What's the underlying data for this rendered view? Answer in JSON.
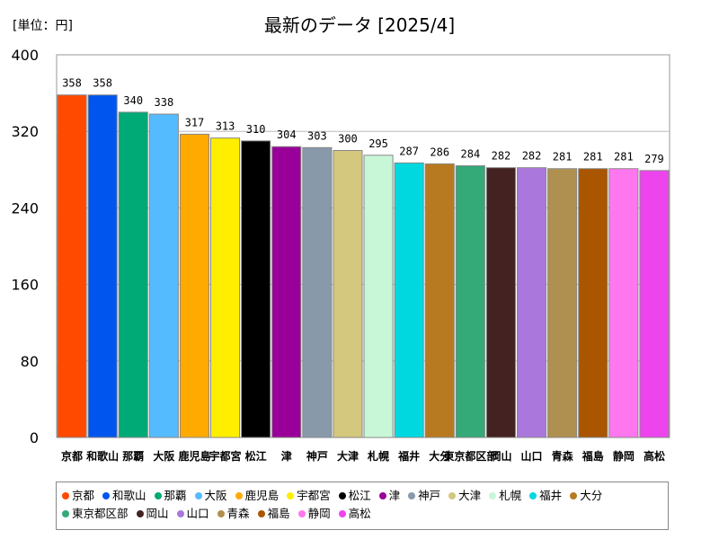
{
  "unit_label": "[単位：円]",
  "chart_data": {
    "type": "bar",
    "title": "最新のデータ [2025/4]",
    "ylim": [
      0,
      400
    ],
    "yticks": [
      0,
      80,
      160,
      240,
      320,
      400
    ],
    "categories": [
      "京都",
      "和歌山",
      "那覇",
      "大阪",
      "鹿児島",
      "宇都宮",
      "松江",
      "津",
      "神戸",
      "大津",
      "札幌",
      "福井",
      "大分",
      "東京都区部",
      "岡山",
      "山口",
      "青森",
      "福島",
      "静岡",
      "高松"
    ],
    "tick_labels": [
      "京都",
      "和歌山",
      "那覇",
      "大阪",
      "鹿児島",
      "宇都宮",
      "松江",
      "津",
      "神戸",
      "大津",
      "札幌",
      "福井",
      "大分",
      "東京都区部",
      "岡山",
      "山口",
      "青森",
      "福島",
      "静岡",
      "高松"
    ],
    "values": [
      358,
      358,
      340,
      338,
      317,
      313,
      310,
      304,
      303,
      300,
      295,
      287,
      286,
      284,
      282,
      282,
      281,
      281,
      281,
      279
    ],
    "colors": [
      "#ff4a00",
      "#0055ee",
      "#00aa77",
      "#55bbff",
      "#ffaa00",
      "#ffee00",
      "#000000",
      "#990099",
      "#8899aa",
      "#d4c77e",
      "#c8f7d8",
      "#00d8e0",
      "#b87a20",
      "#33aa77",
      "#442222",
      "#aa77dd",
      "#b09050",
      "#aa5500",
      "#ff77ee",
      "#ee44ee"
    ],
    "legend": [
      "京都",
      "和歌山",
      "那覇",
      "大阪",
      "鹿児島",
      "宇都宮",
      "松江",
      "津",
      "神戸",
      "大津",
      "札幌",
      "福井",
      "大分",
      "東京都区部",
      "岡山",
      "山口",
      "青森",
      "福島",
      "静岡",
      "高松"
    ],
    "legend_position": "bottom",
    "grid": true
  }
}
